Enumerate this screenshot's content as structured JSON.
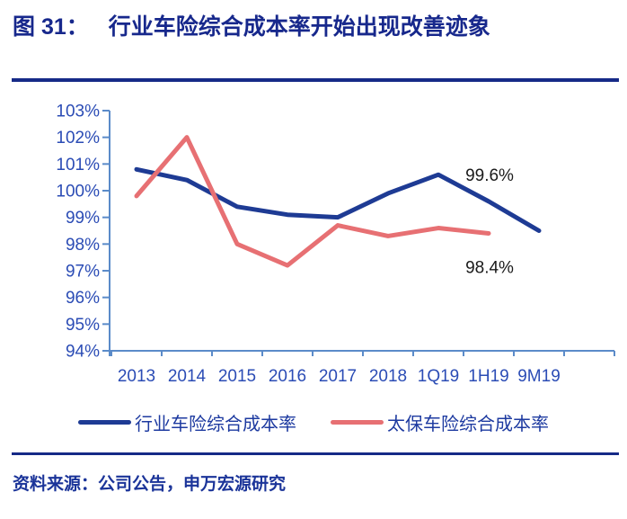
{
  "header": {
    "figure_label": "图 31：",
    "caption": "行业车险综合成本率开始出现改善迹象"
  },
  "chart_data": {
    "type": "line",
    "title": "行业车险综合成本率开始出现改善迹象",
    "categories": [
      "2013",
      "2014",
      "2015",
      "2016",
      "2017",
      "2018",
      "1Q19",
      "1H19",
      "9M19"
    ],
    "y_tick_labels": [
      "103%",
      "102%",
      "101%",
      "100%",
      "99%",
      "98%",
      "97%",
      "96%",
      "95%",
      "94%"
    ],
    "ylim": [
      94,
      103
    ],
    "xlabel": "",
    "ylabel": "",
    "grid": "off",
    "legend_position": "bottom",
    "axis_color": "#5B8BC9",
    "tick_label_color": "#2B4CB5",
    "series": [
      {
        "name": "行业车险综合成本率",
        "color": "#1E3B94",
        "values": [
          100.8,
          100.4,
          99.4,
          99.1,
          99.0,
          99.9,
          100.6,
          99.6,
          98.5
        ]
      },
      {
        "name": "太保车险综合成本率",
        "color": "#E77073",
        "values": [
          99.8,
          102.0,
          98.0,
          97.2,
          98.7,
          98.3,
          98.6,
          98.4,
          null
        ]
      }
    ],
    "annotations": [
      {
        "label": "99.6%",
        "series": 0,
        "category": "1H19"
      },
      {
        "label": "98.4%",
        "series": 1,
        "category": "1H19"
      }
    ]
  },
  "footer": {
    "source": "资料来源：公司公告，申万宏源研究"
  }
}
